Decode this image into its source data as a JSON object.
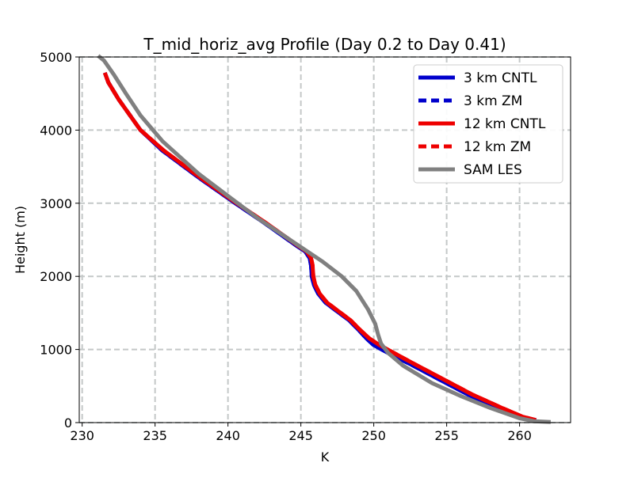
{
  "chart_data": {
    "type": "line",
    "title": "T_mid_horiz_avg Profile (Day 0.2 to Day 0.41)",
    "xlabel": "K",
    "ylabel": "Height (m)",
    "xlim": [
      229.8,
      263.5
    ],
    "ylim": [
      0,
      5000
    ],
    "xticks": [
      230,
      235,
      240,
      245,
      250,
      255,
      260
    ],
    "yticks": [
      0,
      1000,
      2000,
      3000,
      4000,
      5000
    ],
    "grid": true,
    "legend_position": "top-right",
    "series": [
      {
        "name": "3 km CNTL",
        "color": "#0000cc",
        "dash": "solid",
        "points": [
          [
            261.0,
            40
          ],
          [
            260.0,
            80
          ],
          [
            258.5,
            200
          ],
          [
            256.5,
            380
          ],
          [
            254.5,
            590
          ],
          [
            252.5,
            800
          ],
          [
            251.0,
            950
          ],
          [
            250.0,
            1060
          ],
          [
            249.5,
            1150
          ],
          [
            249.0,
            1260
          ],
          [
            248.3,
            1400
          ],
          [
            247.5,
            1520
          ],
          [
            246.7,
            1640
          ],
          [
            246.2,
            1760
          ],
          [
            245.9,
            1880
          ],
          [
            245.75,
            2000
          ],
          [
            245.7,
            2150
          ],
          [
            245.6,
            2250
          ],
          [
            245.3,
            2340
          ],
          [
            244.7,
            2420
          ],
          [
            242.5,
            2730
          ],
          [
            240.5,
            3000
          ],
          [
            238.0,
            3350
          ],
          [
            235.5,
            3720
          ],
          [
            234.0,
            4000
          ],
          [
            232.5,
            4420
          ],
          [
            231.8,
            4650
          ],
          [
            231.6,
            4760
          ]
        ]
      },
      {
        "name": "3 km ZM",
        "color": "#0000cc",
        "dash": "dashed",
        "points": [
          [
            261.0,
            40
          ],
          [
            260.0,
            80
          ],
          [
            258.5,
            200
          ],
          [
            256.5,
            380
          ],
          [
            254.5,
            590
          ],
          [
            252.5,
            800
          ],
          [
            251.0,
            950
          ],
          [
            250.0,
            1060
          ],
          [
            249.5,
            1150
          ],
          [
            249.0,
            1260
          ],
          [
            248.3,
            1400
          ],
          [
            247.5,
            1520
          ],
          [
            246.7,
            1640
          ],
          [
            246.2,
            1760
          ],
          [
            245.9,
            1880
          ],
          [
            245.75,
            2000
          ],
          [
            245.7,
            2150
          ],
          [
            245.6,
            2250
          ],
          [
            245.3,
            2340
          ],
          [
            244.7,
            2420
          ],
          [
            242.5,
            2730
          ],
          [
            240.5,
            3000
          ],
          [
            238.0,
            3350
          ],
          [
            235.5,
            3720
          ],
          [
            234.0,
            4000
          ],
          [
            232.5,
            4420
          ],
          [
            231.8,
            4650
          ],
          [
            231.6,
            4760
          ]
        ]
      },
      {
        "name": "12 km CNTL",
        "color": "#ee0000",
        "dash": "solid",
        "points": [
          [
            261.0,
            40
          ],
          [
            260.2,
            80
          ],
          [
            258.8,
            200
          ],
          [
            256.8,
            380
          ],
          [
            254.8,
            590
          ],
          [
            252.8,
            800
          ],
          [
            251.4,
            950
          ],
          [
            250.4,
            1060
          ],
          [
            249.7,
            1150
          ],
          [
            249.1,
            1260
          ],
          [
            248.4,
            1400
          ],
          [
            247.6,
            1520
          ],
          [
            246.8,
            1640
          ],
          [
            246.3,
            1760
          ],
          [
            246.0,
            1880
          ],
          [
            245.85,
            2000
          ],
          [
            245.8,
            2150
          ],
          [
            245.7,
            2250
          ],
          [
            245.4,
            2340
          ],
          [
            244.8,
            2420
          ],
          [
            242.6,
            2730
          ],
          [
            240.6,
            3000
          ],
          [
            238.1,
            3350
          ],
          [
            235.6,
            3720
          ],
          [
            234.0,
            4000
          ],
          [
            232.5,
            4420
          ],
          [
            231.8,
            4650
          ],
          [
            231.6,
            4760
          ]
        ]
      },
      {
        "name": "12 km ZM",
        "color": "#ee0000",
        "dash": "dashed",
        "points": [
          [
            261.0,
            40
          ],
          [
            260.2,
            80
          ],
          [
            258.8,
            200
          ],
          [
            256.8,
            380
          ],
          [
            254.8,
            590
          ],
          [
            252.8,
            800
          ],
          [
            251.4,
            950
          ],
          [
            250.4,
            1060
          ],
          [
            249.7,
            1150
          ],
          [
            249.1,
            1260
          ],
          [
            248.4,
            1400
          ],
          [
            247.6,
            1520
          ],
          [
            246.8,
            1640
          ],
          [
            246.3,
            1760
          ],
          [
            246.0,
            1880
          ],
          [
            245.85,
            2000
          ],
          [
            245.8,
            2150
          ],
          [
            245.7,
            2250
          ],
          [
            245.4,
            2340
          ],
          [
            244.8,
            2420
          ],
          [
            242.6,
            2730
          ],
          [
            240.6,
            3000
          ],
          [
            238.1,
            3350
          ],
          [
            235.6,
            3720
          ],
          [
            234.0,
            4000
          ],
          [
            232.5,
            4420
          ],
          [
            231.8,
            4650
          ],
          [
            231.6,
            4760
          ]
        ]
      },
      {
        "name": "SAM LES",
        "color": "#808080",
        "dash": "solid",
        "points": [
          [
            262.0,
            10
          ],
          [
            261.0,
            20
          ],
          [
            260.0,
            60
          ],
          [
            258.0,
            200
          ],
          [
            256.0,
            360
          ],
          [
            254.0,
            540
          ],
          [
            252.0,
            780
          ],
          [
            251.0,
            950
          ],
          [
            250.5,
            1080
          ],
          [
            250.3,
            1200
          ],
          [
            250.1,
            1350
          ],
          [
            249.6,
            1550
          ],
          [
            248.8,
            1800
          ],
          [
            247.8,
            2000
          ],
          [
            246.5,
            2200
          ],
          [
            245.0,
            2400
          ],
          [
            242.0,
            2800
          ],
          [
            240.0,
            3100
          ],
          [
            238.0,
            3400
          ],
          [
            235.5,
            3850
          ],
          [
            234.0,
            4200
          ],
          [
            233.0,
            4500
          ],
          [
            232.2,
            4750
          ],
          [
            231.5,
            4950
          ],
          [
            231.2,
            5000
          ]
        ]
      }
    ]
  }
}
